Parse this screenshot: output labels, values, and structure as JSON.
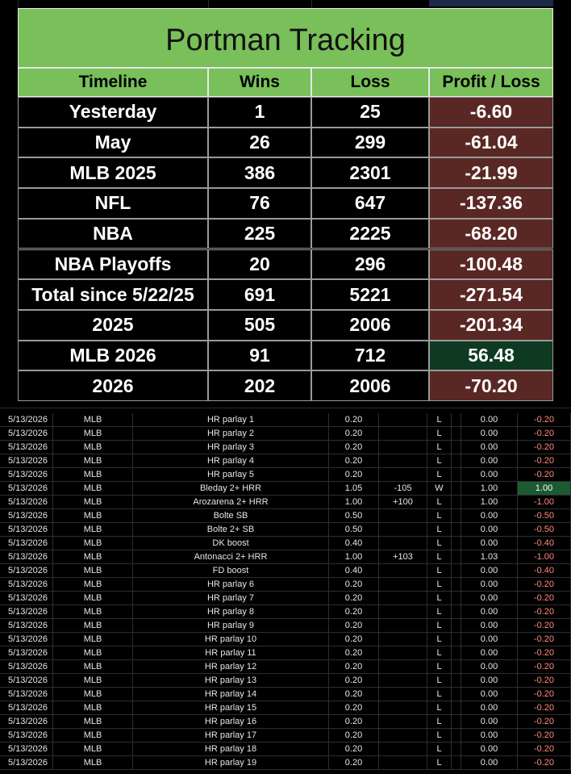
{
  "summary": {
    "title": "Portman Tracking",
    "columns": [
      "Timeline",
      "Wins",
      "Loss",
      "Profit / Loss"
    ],
    "rows": [
      [
        "Yesterday",
        "1",
        "25",
        "-6.60"
      ],
      [
        "May",
        "26",
        "299",
        "-61.04"
      ],
      [
        "MLB 2025",
        "386",
        "2301",
        "-21.99"
      ],
      [
        "NFL",
        "76",
        "647",
        "-137.36"
      ],
      [
        "NBA",
        "225",
        "2225",
        "-68.20"
      ],
      [
        "NBA Playoffs",
        "20",
        "296",
        "-100.48"
      ],
      [
        "Total since 5/22/25",
        "691",
        "5221",
        "-271.54"
      ],
      [
        "2025",
        "505",
        "2006",
        "-201.34"
      ],
      [
        "MLB 2026",
        "91",
        "712",
        "56.48"
      ],
      [
        "2026",
        "202",
        "2006",
        "-70.20"
      ]
    ]
  },
  "bets": [
    {
      "date": "5/13/2026",
      "league": "MLB",
      "bet": "HR parlay 1",
      "stake": "0.20",
      "result": "L",
      "return": "0.00",
      "profit": "-0.20"
    },
    {
      "date": "5/13/2026",
      "league": "MLB",
      "bet": "HR parlay 2",
      "stake": "0.20",
      "result": "L",
      "return": "0.00",
      "profit": "-0.20"
    },
    {
      "date": "5/13/2026",
      "league": "MLB",
      "bet": "HR parlay 3",
      "stake": "0.20",
      "result": "L",
      "return": "0.00",
      "profit": "-0.20"
    },
    {
      "date": "5/13/2026",
      "league": "MLB",
      "bet": "HR parlay 4",
      "stake": "0.20",
      "result": "L",
      "return": "0.00",
      "profit": "-0.20"
    },
    {
      "date": "5/13/2026",
      "league": "MLB",
      "bet": "HR parlay 5",
      "stake": "0.20",
      "result": "L",
      "return": "0.00",
      "profit": "-0.20"
    },
    {
      "date": "5/13/2026",
      "league": "MLB",
      "bet": "Bleday 2+ HRR",
      "stake": "1.05",
      "odds": "-105",
      "result": "W",
      "return": "1.00",
      "profit": "1.00"
    },
    {
      "date": "5/13/2026",
      "league": "MLB",
      "bet": "Arozarena 2+ HRR",
      "stake": "1.00",
      "odds": "+100",
      "result": "L",
      "return": "1.00",
      "profit": "-1.00"
    },
    {
      "date": "5/13/2026",
      "league": "MLB",
      "bet": "Bolte SB",
      "stake": "0.50",
      "result": "L",
      "return": "0.00",
      "profit": "-0.50"
    },
    {
      "date": "5/13/2026",
      "league": "MLB",
      "bet": "Bolte 2+ SB",
      "stake": "0.50",
      "result": "L",
      "return": "0.00",
      "profit": "-0.50"
    },
    {
      "date": "5/13/2026",
      "league": "MLB",
      "bet": "DK boost",
      "stake": "0.40",
      "result": "L",
      "return": "0.00",
      "profit": "-0.40"
    },
    {
      "date": "5/13/2026",
      "league": "MLB",
      "bet": "Antonacci 2+ HRR",
      "stake": "1.00",
      "odds": "+103",
      "result": "L",
      "return": "1.03",
      "profit": "-1.00"
    },
    {
      "date": "5/13/2026",
      "league": "MLB",
      "bet": "FD boost",
      "stake": "0.40",
      "result": "L",
      "return": "0.00",
      "profit": "-0.40"
    },
    {
      "date": "5/13/2026",
      "league": "MLB",
      "bet": "HR parlay 6",
      "stake": "0.20",
      "result": "L",
      "return": "0.00",
      "profit": "-0.20"
    },
    {
      "date": "5/13/2026",
      "league": "MLB",
      "bet": "HR parlay 7",
      "stake": "0.20",
      "result": "L",
      "return": "0.00",
      "profit": "-0.20"
    },
    {
      "date": "5/13/2026",
      "league": "MLB",
      "bet": "HR parlay 8",
      "stake": "0.20",
      "result": "L",
      "return": "0.00",
      "profit": "-0.20"
    },
    {
      "date": "5/13/2026",
      "league": "MLB",
      "bet": "HR parlay 9",
      "stake": "0.20",
      "result": "L",
      "return": "0.00",
      "profit": "-0.20"
    },
    {
      "date": "5/13/2026",
      "league": "MLB",
      "bet": "HR parlay 10",
      "stake": "0.20",
      "result": "L",
      "return": "0.00",
      "profit": "-0.20"
    },
    {
      "date": "5/13/2026",
      "league": "MLB",
      "bet": "HR parlay 11",
      "stake": "0.20",
      "result": "L",
      "return": "0.00",
      "profit": "-0.20"
    },
    {
      "date": "5/13/2026",
      "league": "MLB",
      "bet": "HR parlay 12",
      "stake": "0.20",
      "result": "L",
      "return": "0.00",
      "profit": "-0.20"
    },
    {
      "date": "5/13/2026",
      "league": "MLB",
      "bet": "HR parlay 13",
      "stake": "0.20",
      "result": "L",
      "return": "0.00",
      "profit": "-0.20"
    },
    {
      "date": "5/13/2026",
      "league": "MLB",
      "bet": "HR parlay 14",
      "stake": "0.20",
      "result": "L",
      "return": "0.00",
      "profit": "-0.20"
    },
    {
      "date": "5/13/2026",
      "league": "MLB",
      "bet": "HR parlay 15",
      "stake": "0.20",
      "result": "L",
      "return": "0.00",
      "profit": "-0.20"
    },
    {
      "date": "5/13/2026",
      "league": "MLB",
      "bet": "HR parlay 16",
      "stake": "0.20",
      "result": "L",
      "return": "0.00",
      "profit": "-0.20"
    },
    {
      "date": "5/13/2026",
      "league": "MLB",
      "bet": "HR parlay 17",
      "stake": "0.20",
      "result": "L",
      "return": "0.00",
      "profit": "-0.20"
    },
    {
      "date": "5/13/2026",
      "league": "MLB",
      "bet": "HR parlay 18",
      "stake": "0.20",
      "result": "L",
      "return": "0.00",
      "profit": "-0.20"
    },
    {
      "date": "5/13/2026",
      "league": "MLB",
      "bet": "HR parlay 19",
      "stake": "0.20",
      "result": "L",
      "return": "0.00",
      "profit": "-0.20"
    }
  ]
}
